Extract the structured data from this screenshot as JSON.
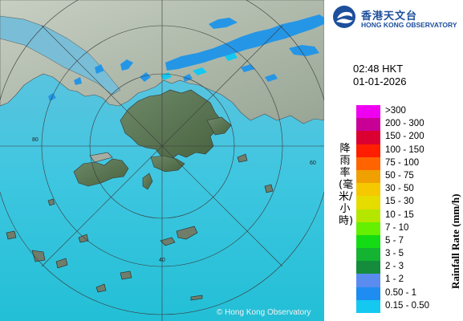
{
  "organization": {
    "name_zh": "香港天文台",
    "name_en": "HONG KONG OBSERVATORY"
  },
  "timestamp": {
    "time": "02:48 HKT",
    "date": "01-01-2026"
  },
  "legend": {
    "title_zh": "降雨率(毫米/小時)",
    "title_en": "Rainfall Rate (mm/h)",
    "items": [
      {
        "label": ">300",
        "color": "#f000f0"
      },
      {
        "label": "200 - 300",
        "color": "#c80096"
      },
      {
        "label": "150 - 200",
        "color": "#dc0032"
      },
      {
        "label": "100 - 150",
        "color": "#ff1e00"
      },
      {
        "label": "75 - 100",
        "color": "#ff6400"
      },
      {
        "label": "50 - 75",
        "color": "#f0a000"
      },
      {
        "label": "30 - 50",
        "color": "#f5c800"
      },
      {
        "label": "15 - 30",
        "color": "#e6dc00"
      },
      {
        "label": "10 - 15",
        "color": "#b4e600"
      },
      {
        "label": "7 - 10",
        "color": "#64f000"
      },
      {
        "label": "5 - 7",
        "color": "#14dc14"
      },
      {
        "label": "3 - 5",
        "color": "#14b432"
      },
      {
        "label": "2 - 3",
        "color": "#148c3c"
      },
      {
        "label": "1 - 2",
        "color": "#5a8cf0"
      },
      {
        "label": "0.50 - 1",
        "color": "#1e8cf0"
      },
      {
        "label": "0.15 - 0.50",
        "color": "#14c8f0"
      }
    ]
  },
  "map": {
    "range_labels": [
      "40",
      "60",
      "80"
    ],
    "copyright": "© Hong Kong Observatory"
  }
}
